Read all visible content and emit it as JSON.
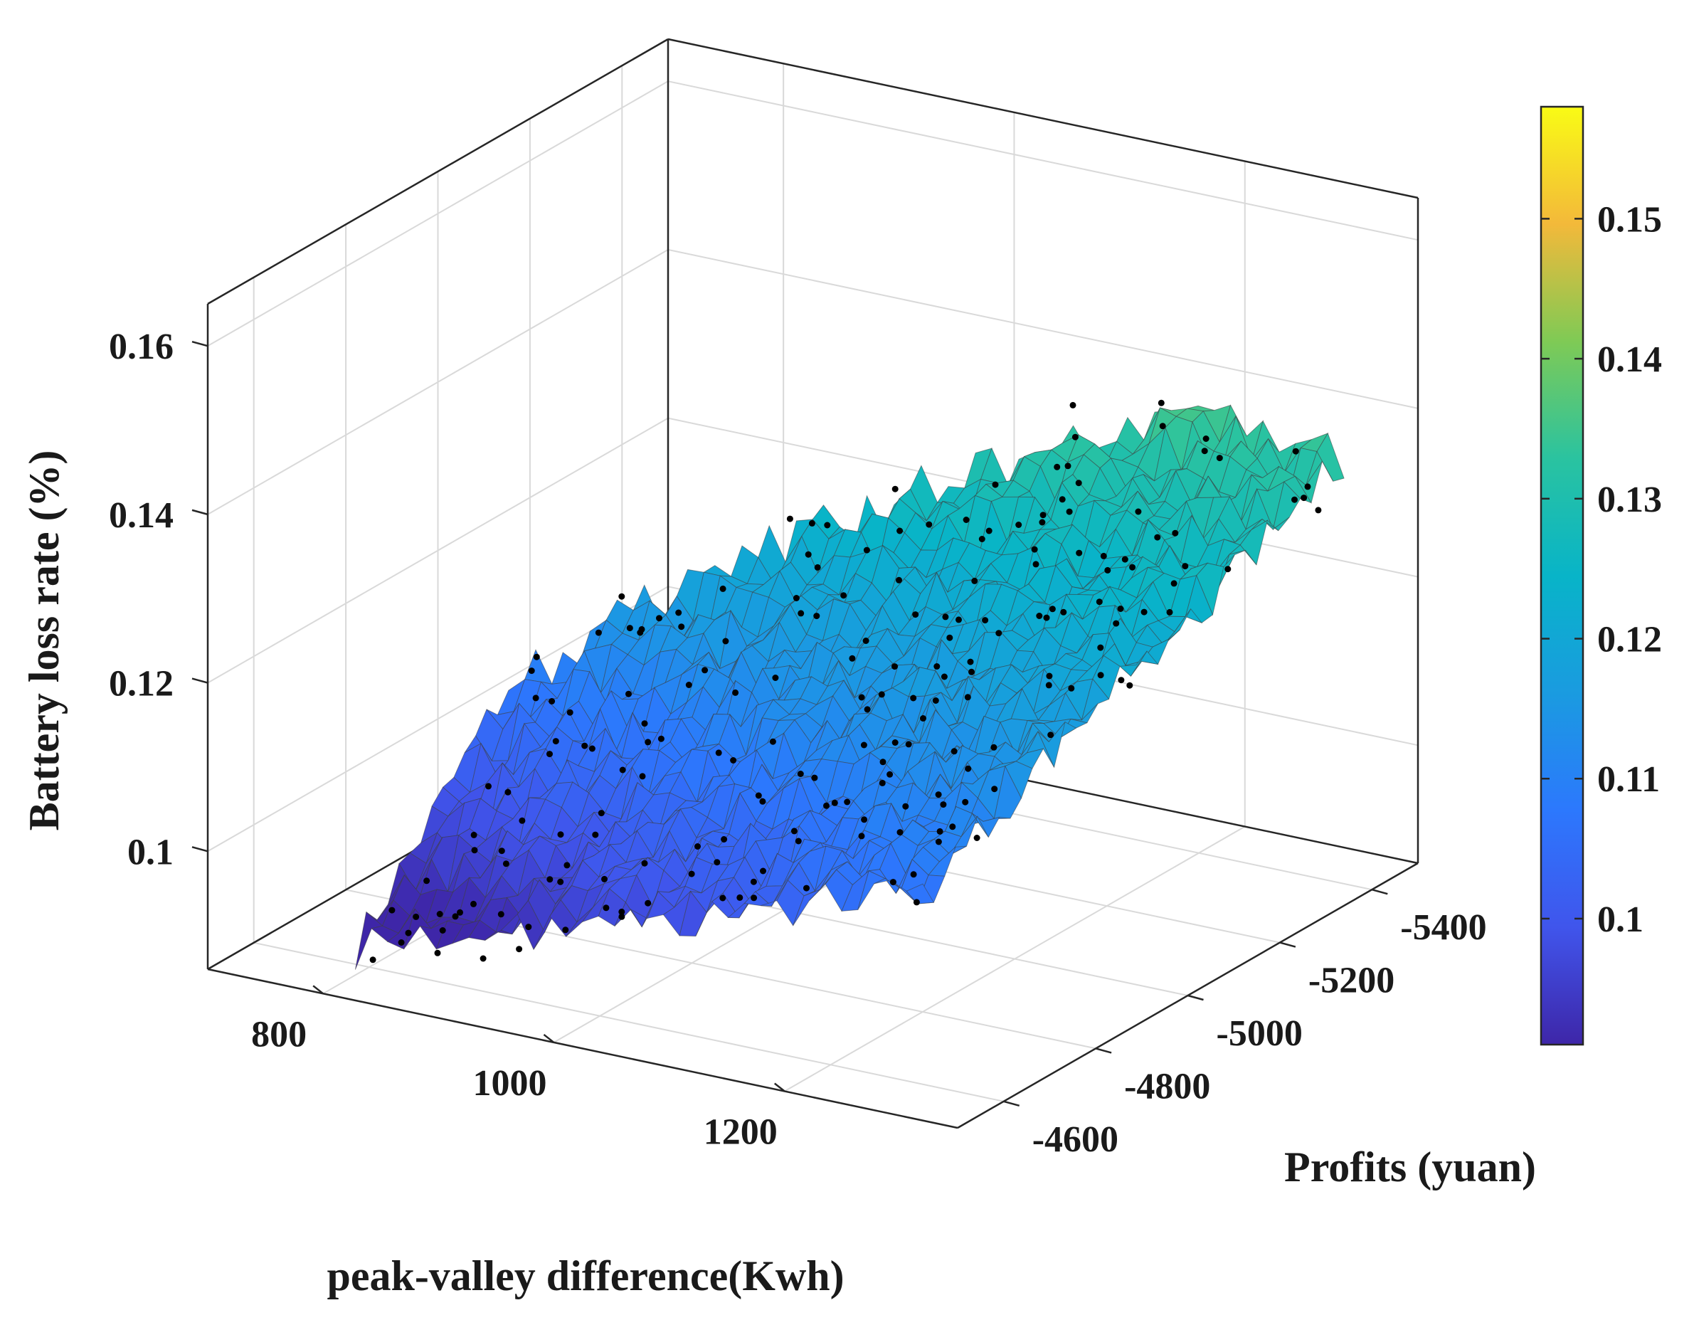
{
  "chart_data": {
    "type": "surface3d",
    "xlabel": "peak-valley difference(Kwh)",
    "ylabel": "Profits (yuan)",
    "zlabel": "Battery loss rate (%)",
    "xlim": [
      700,
      1350
    ],
    "ylim": [
      -5500,
      -4500
    ],
    "zlim": [
      0.086,
      0.165
    ],
    "x_ticks": [
      800,
      1000,
      1200
    ],
    "y_ticks": [
      -5400,
      -5200,
      -5000,
      -4800,
      -4600
    ],
    "z_ticks": [
      0.1,
      0.12,
      0.14,
      0.16
    ],
    "x_tick_labels": [
      "800",
      "1000",
      "1200"
    ],
    "y_tick_labels": [
      "-5400",
      "-5200",
      "-5000",
      "-4800",
      "-4600"
    ],
    "z_tick_labels": [
      "0.1",
      "0.12",
      "0.14",
      "0.16"
    ],
    "colorbar": {
      "colormap": "parula",
      "range": [
        0.091,
        0.158
      ],
      "ticks": [
        0.1,
        0.11,
        0.12,
        0.13,
        0.14,
        0.15
      ],
      "tick_labels": [
        "0.1",
        "0.11",
        "0.12",
        "0.13",
        "0.14",
        "0.15"
      ]
    },
    "surface": {
      "x_range": [
        780,
        1300
      ],
      "y_range": [
        -5500,
        -4620
      ],
      "grid": [
        38,
        38
      ],
      "model": "z = 0.087 + 0.045*v + 0.022*u*(1-v) + 0.01*v*(1-u) + noise, u=(x-780)/520, v=(-4620-y)/880"
    },
    "scatter": {
      "count": 200,
      "marker": "black dots",
      "description": "sample points scattered on and around the fitted surface"
    },
    "colors": {
      "grid": "#d9d9d9",
      "axes": "#262626",
      "text": "#1a1a1a",
      "markers": "#000000"
    }
  }
}
